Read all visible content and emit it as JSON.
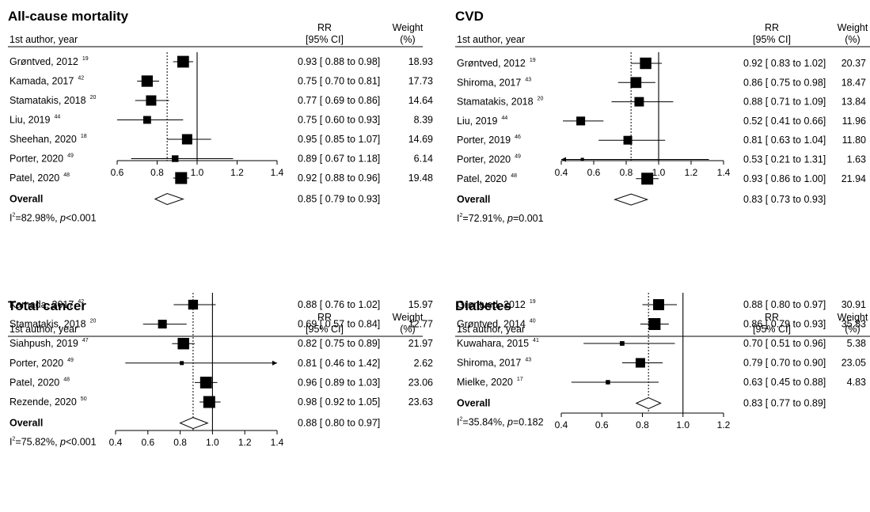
{
  "header_labels": {
    "author": "1st author, year",
    "rr": "RR",
    "ci": "[95% CI]",
    "weight": "Weight",
    "weight_unit": "(%)",
    "to": "to"
  },
  "chart_data": [
    {
      "type": "forest",
      "title": "All-cause mortality",
      "xlim": [
        0.6,
        1.4
      ],
      "ticks": [
        "0.6",
        "0.8",
        "1.0",
        "1.2",
        "1.4"
      ],
      "null_line": 1.0,
      "studies": [
        {
          "author": "Grøntved, 2012",
          "ref": "19",
          "rr": 0.93,
          "lo": 0.88,
          "hi": 0.98,
          "rr_text": "0.93",
          "lo_text": "0.88",
          "hi_text": "0.98",
          "weight": 18.93,
          "weight_text": "18.93"
        },
        {
          "author": "Kamada, 2017",
          "ref": "42",
          "rr": 0.75,
          "lo": 0.7,
          "hi": 0.81,
          "rr_text": "0.75",
          "lo_text": "0.70",
          "hi_text": "0.81",
          "weight": 17.73,
          "weight_text": "17.73"
        },
        {
          "author": "Stamatakis, 2018",
          "ref": "20",
          "rr": 0.77,
          "lo": 0.69,
          "hi": 0.86,
          "rr_text": "0.77",
          "lo_text": "0.69",
          "hi_text": "0.86",
          "weight": 14.64,
          "weight_text": "14.64"
        },
        {
          "author": "Liu, 2019",
          "ref": "44",
          "rr": 0.75,
          "lo": 0.6,
          "hi": 0.93,
          "rr_text": "0.75",
          "lo_text": "0.60",
          "hi_text": "0.93",
          "weight": 8.39,
          "weight_text": "8.39"
        },
        {
          "author": "Sheehan, 2020",
          "ref": "18",
          "rr": 0.95,
          "lo": 0.85,
          "hi": 1.07,
          "rr_text": "0.95",
          "lo_text": "0.85",
          "hi_text": "1.07",
          "weight": 14.69,
          "weight_text": "14.69"
        },
        {
          "author": "Porter, 2020",
          "ref": "49",
          "rr": 0.89,
          "lo": 0.67,
          "hi": 1.18,
          "rr_text": "0.89",
          "lo_text": "0.67",
          "hi_text": "1.18",
          "weight": 6.14,
          "weight_text": "6.14"
        },
        {
          "author": "Patel, 2020",
          "ref": "48",
          "rr": 0.92,
          "lo": 0.88,
          "hi": 0.96,
          "rr_text": "0.92",
          "lo_text": "0.88",
          "hi_text": "0.96",
          "weight": 19.48,
          "weight_text": "19.48"
        }
      ],
      "overall": {
        "label": "Overall",
        "rr": 0.85,
        "lo": 0.79,
        "hi": 0.93,
        "rr_text": "0.85",
        "lo_text": "0.79",
        "hi_text": "0.93"
      },
      "heterogeneity": {
        "i2": "82.98%",
        "p_text": "<0.001"
      }
    },
    {
      "type": "forest",
      "title": "CVD",
      "xlim": [
        0.4,
        1.4
      ],
      "ticks": [
        "0.4",
        "0.6",
        "0.8",
        "1.0",
        "1.2",
        "1.4"
      ],
      "null_line": 1.0,
      "studies": [
        {
          "author": "Grøntved, 2012",
          "ref": "19",
          "rr": 0.92,
          "lo": 0.83,
          "hi": 1.02,
          "rr_text": "0.92",
          "lo_text": "0.83",
          "hi_text": "1.02",
          "weight": 20.37,
          "weight_text": "20.37"
        },
        {
          "author": "Shiroma, 2017",
          "ref": "43",
          "rr": 0.86,
          "lo": 0.75,
          "hi": 0.98,
          "rr_text": "0.86",
          "lo_text": "0.75",
          "hi_text": "0.98",
          "weight": 18.47,
          "weight_text": "18.47"
        },
        {
          "author": "Stamatakis, 2018",
          "ref": "20",
          "rr": 0.88,
          "lo": 0.71,
          "hi": 1.09,
          "rr_text": "0.88",
          "lo_text": "0.71",
          "hi_text": "1.09",
          "weight": 13.84,
          "weight_text": "13.84"
        },
        {
          "author": "Liu, 2019",
          "ref": "44",
          "rr": 0.52,
          "lo": 0.41,
          "hi": 0.66,
          "rr_text": "0.52",
          "lo_text": "0.41",
          "hi_text": "0.66",
          "weight": 11.96,
          "weight_text": "11.96"
        },
        {
          "author": "Porter, 2019",
          "ref": "46",
          "rr": 0.81,
          "lo": 0.63,
          "hi": 1.04,
          "rr_text": "0.81",
          "lo_text": "0.63",
          "hi_text": "1.04",
          "weight": 11.8,
          "weight_text": "11.80"
        },
        {
          "author": "Porter, 2020",
          "ref": "49",
          "rr": 0.53,
          "lo": 0.21,
          "hi": 1.31,
          "rr_text": "0.53",
          "lo_text": "0.21",
          "hi_text": "1.31",
          "weight": 1.63,
          "weight_text": "1.63"
        },
        {
          "author": "Patel, 2020",
          "ref": "48",
          "rr": 0.93,
          "lo": 0.86,
          "hi": 1.0,
          "rr_text": "0.93",
          "lo_text": "0.86",
          "hi_text": "1.00",
          "weight": 21.94,
          "weight_text": "21.94"
        }
      ],
      "overall": {
        "label": "Overall",
        "rr": 0.83,
        "lo": 0.73,
        "hi": 0.93,
        "rr_text": "0.83",
        "lo_text": "0.73",
        "hi_text": "0.93"
      },
      "heterogeneity": {
        "i2": "72.91%",
        "p_text": "=0.001"
      }
    },
    {
      "type": "forest",
      "title": "Total cancer",
      "xlim": [
        0.4,
        1.4
      ],
      "ticks": [
        "0.4",
        "0.6",
        "0.8",
        "1.0",
        "1.2",
        "1.4"
      ],
      "null_line": 1.0,
      "studies": [
        {
          "author": "Kamada, 2017",
          "ref": "42",
          "rr": 0.88,
          "lo": 0.76,
          "hi": 1.02,
          "rr_text": "0.88",
          "lo_text": "0.76",
          "hi_text": "1.02",
          "weight": 15.97,
          "weight_text": "15.97"
        },
        {
          "author": "Stamatakis, 2018",
          "ref": "20",
          "rr": 0.69,
          "lo": 0.57,
          "hi": 0.84,
          "rr_text": "0.69",
          "lo_text": "0.57",
          "hi_text": "0.84",
          "weight": 12.77,
          "weight_text": "12.77"
        },
        {
          "author": "Siahpush, 2019",
          "ref": "47",
          "rr": 0.82,
          "lo": 0.75,
          "hi": 0.89,
          "rr_text": "0.82",
          "lo_text": "0.75",
          "hi_text": "0.89",
          "weight": 21.97,
          "weight_text": "21.97"
        },
        {
          "author": "Porter, 2020",
          "ref": "49",
          "rr": 0.81,
          "lo": 0.46,
          "hi": 1.42,
          "rr_text": "0.81",
          "lo_text": "0.46",
          "hi_text": "1.42",
          "weight": 2.62,
          "weight_text": "2.62"
        },
        {
          "author": "Patel, 2020",
          "ref": "48",
          "rr": 0.96,
          "lo": 0.89,
          "hi": 1.03,
          "rr_text": "0.96",
          "lo_text": "0.89",
          "hi_text": "1.03",
          "weight": 23.06,
          "weight_text": "23.06"
        },
        {
          "author": "Rezende, 2020",
          "ref": "50",
          "rr": 0.98,
          "lo": 0.92,
          "hi": 1.05,
          "rr_text": "0.98",
          "lo_text": "0.92",
          "hi_text": "1.05",
          "weight": 23.63,
          "weight_text": "23.63"
        }
      ],
      "overall": {
        "label": "Overall",
        "rr": 0.88,
        "lo": 0.8,
        "hi": 0.97,
        "rr_text": "0.88",
        "lo_text": "0.80",
        "hi_text": "0.97"
      },
      "heterogeneity": {
        "i2": "75.82%",
        "p_text": "<0.001"
      }
    },
    {
      "type": "forest",
      "title": "Diabetes",
      "xlim": [
        0.4,
        1.2
      ],
      "ticks": [
        "0.4",
        "0.6",
        "0.8",
        "1.0",
        "1.2"
      ],
      "null_line": 1.0,
      "studies": [
        {
          "author": "Grøntved, 2012",
          "ref": "19",
          "rr": 0.88,
          "lo": 0.8,
          "hi": 0.97,
          "rr_text": "0.88",
          "lo_text": "0.80",
          "hi_text": "0.97",
          "weight": 30.91,
          "weight_text": "30.91"
        },
        {
          "author": "Grøntved, 2014",
          "ref": "40",
          "rr": 0.86,
          "lo": 0.79,
          "hi": 0.93,
          "rr_text": "0.86",
          "lo_text": "0.79",
          "hi_text": "0.93",
          "weight": 35.83,
          "weight_text": "35.83"
        },
        {
          "author": "Kuwahara, 2015",
          "ref": "41",
          "rr": 0.7,
          "lo": 0.51,
          "hi": 0.96,
          "rr_text": "0.70",
          "lo_text": "0.51",
          "hi_text": "0.96",
          "weight": 5.38,
          "weight_text": "5.38"
        },
        {
          "author": "Shiroma, 2017",
          "ref": "43",
          "rr": 0.79,
          "lo": 0.7,
          "hi": 0.9,
          "rr_text": "0.79",
          "lo_text": "0.70",
          "hi_text": "0.90",
          "weight": 23.05,
          "weight_text": "23.05"
        },
        {
          "author": "Mielke, 2020",
          "ref": "17",
          "rr": 0.63,
          "lo": 0.45,
          "hi": 0.88,
          "rr_text": "0.63",
          "lo_text": "0.45",
          "hi_text": "0.88",
          "weight": 4.83,
          "weight_text": "4.83"
        }
      ],
      "overall": {
        "label": "Overall",
        "rr": 0.83,
        "lo": 0.77,
        "hi": 0.89,
        "rr_text": "0.83",
        "lo_text": "0.77",
        "hi_text": "0.89"
      },
      "heterogeneity": {
        "i2": "35.84%",
        "p_text": "=0.182"
      }
    }
  ]
}
